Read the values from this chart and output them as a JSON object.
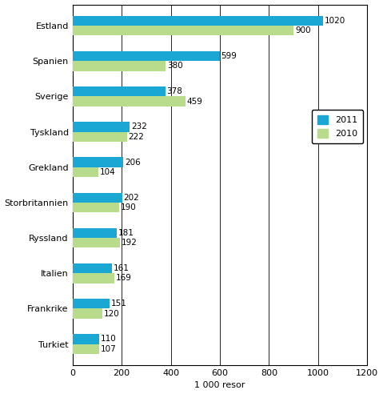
{
  "categories": [
    "Turkiet",
    "Frankrike",
    "Italien",
    "Ryssland",
    "Storbritannien",
    "Grekland",
    "Tyskland",
    "Sverige",
    "Spanien",
    "Estland"
  ],
  "values_2011": [
    110,
    151,
    161,
    181,
    202,
    206,
    232,
    378,
    599,
    1020
  ],
  "values_2010": [
    107,
    120,
    169,
    192,
    190,
    104,
    222,
    459,
    380,
    900
  ],
  "color_2011": "#1AA7D4",
  "color_2010": "#B8DB8C",
  "xlabel": "1 000 resor",
  "legend_2011": "2011",
  "legend_2010": "2010",
  "xlim": [
    0,
    1200
  ],
  "xticks": [
    0,
    200,
    400,
    600,
    800,
    1000,
    1200
  ],
  "bar_height": 0.28,
  "figsize": [
    4.79,
    4.92
  ],
  "dpi": 100,
  "bg_color": "#ffffff",
  "label_fontsize": 7.5,
  "tick_fontsize": 8,
  "legend_fontsize": 8
}
